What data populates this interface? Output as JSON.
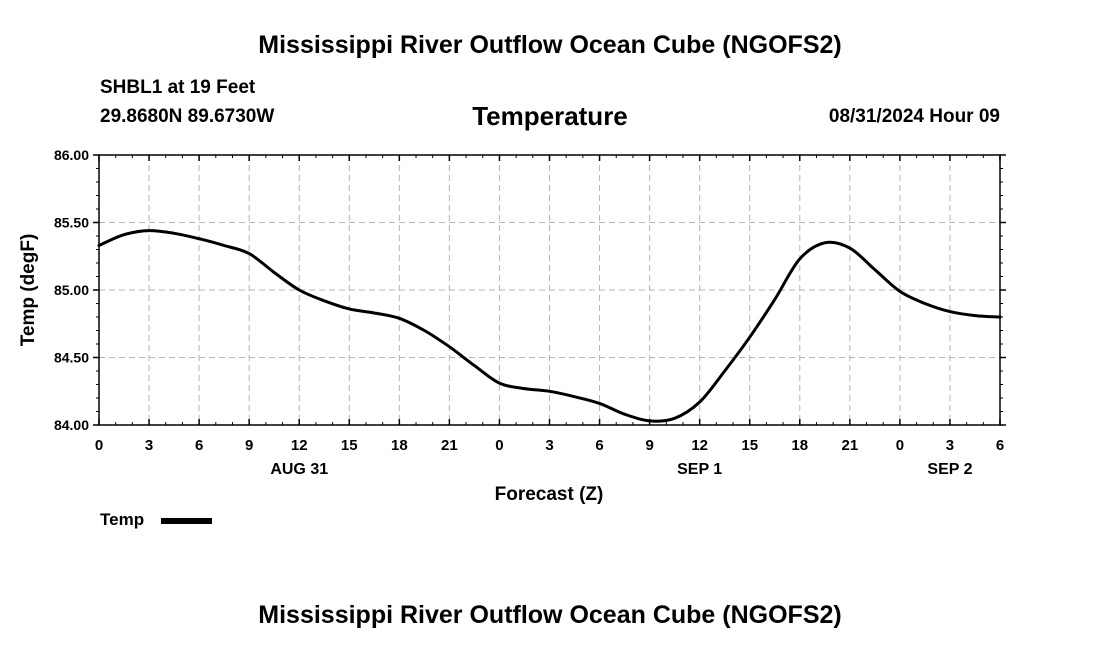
{
  "header": {
    "title": "Mississippi River Outflow Ocean Cube (NGOFS2)",
    "station": "SHBL1 at 19 Feet",
    "coords": "29.8680N  89.6730W",
    "variable": "Temperature",
    "datetime": "08/31/2024 Hour 09"
  },
  "footer": {
    "title": "Mississippi River Outflow Ocean Cube (NGOFS2)"
  },
  "legend": {
    "label": "Temp"
  },
  "colors": {
    "line": "#000000",
    "grid": "#b4b4b4"
  },
  "chart_data": {
    "type": "line",
    "title": "Temperature",
    "xlabel": "Forecast (Z)",
    "ylabel": "Temp (degF)",
    "xlim": [
      0,
      54
    ],
    "ylim": [
      84.0,
      86.0
    ],
    "x_ticks": [
      0,
      3,
      6,
      9,
      12,
      15,
      18,
      21,
      24,
      27,
      30,
      33,
      36,
      39,
      42,
      45,
      48,
      51,
      54
    ],
    "x_tick_labels": [
      "0",
      "3",
      "6",
      "9",
      "12",
      "15",
      "18",
      "21",
      "0",
      "3",
      "6",
      "9",
      "12",
      "15",
      "18",
      "21",
      "0",
      "3",
      "6"
    ],
    "y_ticks": [
      84.0,
      84.5,
      85.0,
      85.5,
      86.0
    ],
    "y_tick_labels": [
      "84.00",
      "84.50",
      "85.00",
      "85.50",
      "86.00"
    ],
    "day_labels": [
      {
        "x": 12,
        "label": "AUG 31"
      },
      {
        "x": 36,
        "label": "SEP 1"
      },
      {
        "x": 51,
        "label": "SEP 2"
      }
    ],
    "grid": true,
    "series": [
      {
        "name": "Temp",
        "x": [
          0,
          1.5,
          3,
          4.5,
          6,
          7.5,
          9,
          10.5,
          12,
          13.5,
          15,
          16.5,
          18,
          19.5,
          21,
          22.5,
          24,
          25.5,
          27,
          28.5,
          30,
          31.5,
          33,
          34.5,
          36,
          37.5,
          39,
          40.5,
          42,
          43.5,
          45,
          46.5,
          48,
          49.5,
          51,
          52.5,
          54
        ],
        "values": [
          85.33,
          85.41,
          85.44,
          85.42,
          85.38,
          85.33,
          85.27,
          85.13,
          85.0,
          84.92,
          84.86,
          84.83,
          84.79,
          84.7,
          84.58,
          84.44,
          84.31,
          84.27,
          84.25,
          84.21,
          84.16,
          84.08,
          84.03,
          84.05,
          84.17,
          84.4,
          84.65,
          84.93,
          85.23,
          85.35,
          85.31,
          85.15,
          84.99,
          84.9,
          84.84,
          84.81,
          84.8
        ]
      }
    ]
  }
}
